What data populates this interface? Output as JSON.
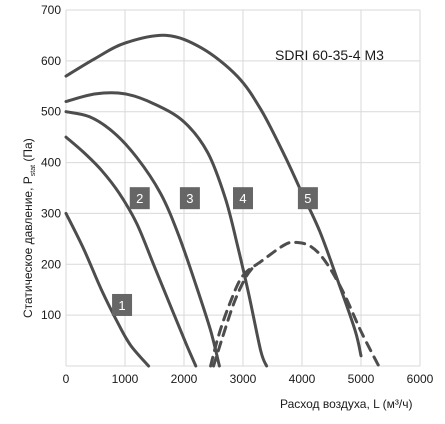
{
  "chart_data": {
    "type": "line",
    "title": "SDRI 60-35-4 M3",
    "xlabel": "Расход воздуха, L (м³/ч)",
    "ylabel_main": "Статическое давление, P",
    "ylabel_sub": "stat",
    "ylabel_unit": " (Па)",
    "xlim": [
      0,
      6000
    ],
    "ylim": [
      0,
      700
    ],
    "x_ticks": [
      "0",
      "1000",
      "2000",
      "3000",
      "4000",
      "5000",
      "6000"
    ],
    "y_ticks": [
      "100",
      "200",
      "300",
      "400",
      "500",
      "600",
      "700"
    ],
    "grid": true,
    "series": [
      {
        "name": "1",
        "style": "solid",
        "points": [
          [
            0,
            300
          ],
          [
            300,
            230
          ],
          [
            600,
            150
          ],
          [
            900,
            80
          ],
          [
            1100,
            40
          ],
          [
            1400,
            0
          ]
        ]
      },
      {
        "name": "2",
        "style": "solid",
        "points": [
          [
            0,
            450
          ],
          [
            300,
            420
          ],
          [
            600,
            385
          ],
          [
            900,
            340
          ],
          [
            1200,
            280
          ],
          [
            1500,
            195
          ],
          [
            1800,
            110
          ],
          [
            2050,
            40
          ],
          [
            2200,
            0
          ]
        ]
      },
      {
        "name": "3",
        "style": "solid",
        "points": [
          [
            0,
            500
          ],
          [
            400,
            490
          ],
          [
            800,
            460
          ],
          [
            1200,
            410
          ],
          [
            1600,
            340
          ],
          [
            1900,
            260
          ],
          [
            2200,
            160
          ],
          [
            2450,
            70
          ],
          [
            2600,
            0
          ]
        ]
      },
      {
        "name": "4",
        "style": "solid",
        "points": [
          [
            0,
            520
          ],
          [
            500,
            535
          ],
          [
            1000,
            535
          ],
          [
            1500,
            515
          ],
          [
            2000,
            480
          ],
          [
            2400,
            420
          ],
          [
            2700,
            330
          ],
          [
            2900,
            240
          ],
          [
            3100,
            140
          ],
          [
            3300,
            30
          ],
          [
            3400,
            0
          ]
        ]
      },
      {
        "name": "5",
        "style": "solid",
        "points": [
          [
            0,
            570
          ],
          [
            500,
            605
          ],
          [
            1000,
            635
          ],
          [
            1700,
            650
          ],
          [
            2300,
            625
          ],
          [
            2900,
            570
          ],
          [
            3300,
            505
          ],
          [
            3700,
            415
          ],
          [
            4000,
            340
          ],
          [
            4300,
            265
          ],
          [
            4600,
            170
          ],
          [
            4900,
            70
          ],
          [
            5000,
            20
          ]
        ]
      },
      {
        "name": "dashed-a",
        "style": "dashed",
        "points": [
          [
            2450,
            0
          ],
          [
            2600,
            65
          ],
          [
            2800,
            130
          ],
          [
            3000,
            178
          ],
          [
            3300,
            205
          ],
          [
            3700,
            238
          ],
          [
            3900,
            243
          ],
          [
            4150,
            235
          ],
          [
            4400,
            205
          ],
          [
            4700,
            145
          ],
          [
            5000,
            68
          ],
          [
            5300,
            0
          ]
        ]
      },
      {
        "name": "dashed-b",
        "style": "dashed",
        "points": [
          [
            2500,
            0
          ],
          [
            2650,
            55
          ],
          [
            2850,
            125
          ],
          [
            3050,
            175
          ],
          [
            3200,
            198
          ]
        ]
      }
    ],
    "labels": [
      {
        "text": "1",
        "x": 950,
        "y": 120
      },
      {
        "text": "2",
        "x": 1250,
        "y": 330
      },
      {
        "text": "3",
        "x": 2100,
        "y": 330
      },
      {
        "text": "4",
        "x": 3000,
        "y": 330
      },
      {
        "text": "5",
        "x": 4100,
        "y": 330
      }
    ],
    "colors": {
      "curve": "#4d4d4d",
      "grid": "#d9d9d9",
      "label_box": "#666666",
      "label_text": "#ffffff"
    }
  }
}
